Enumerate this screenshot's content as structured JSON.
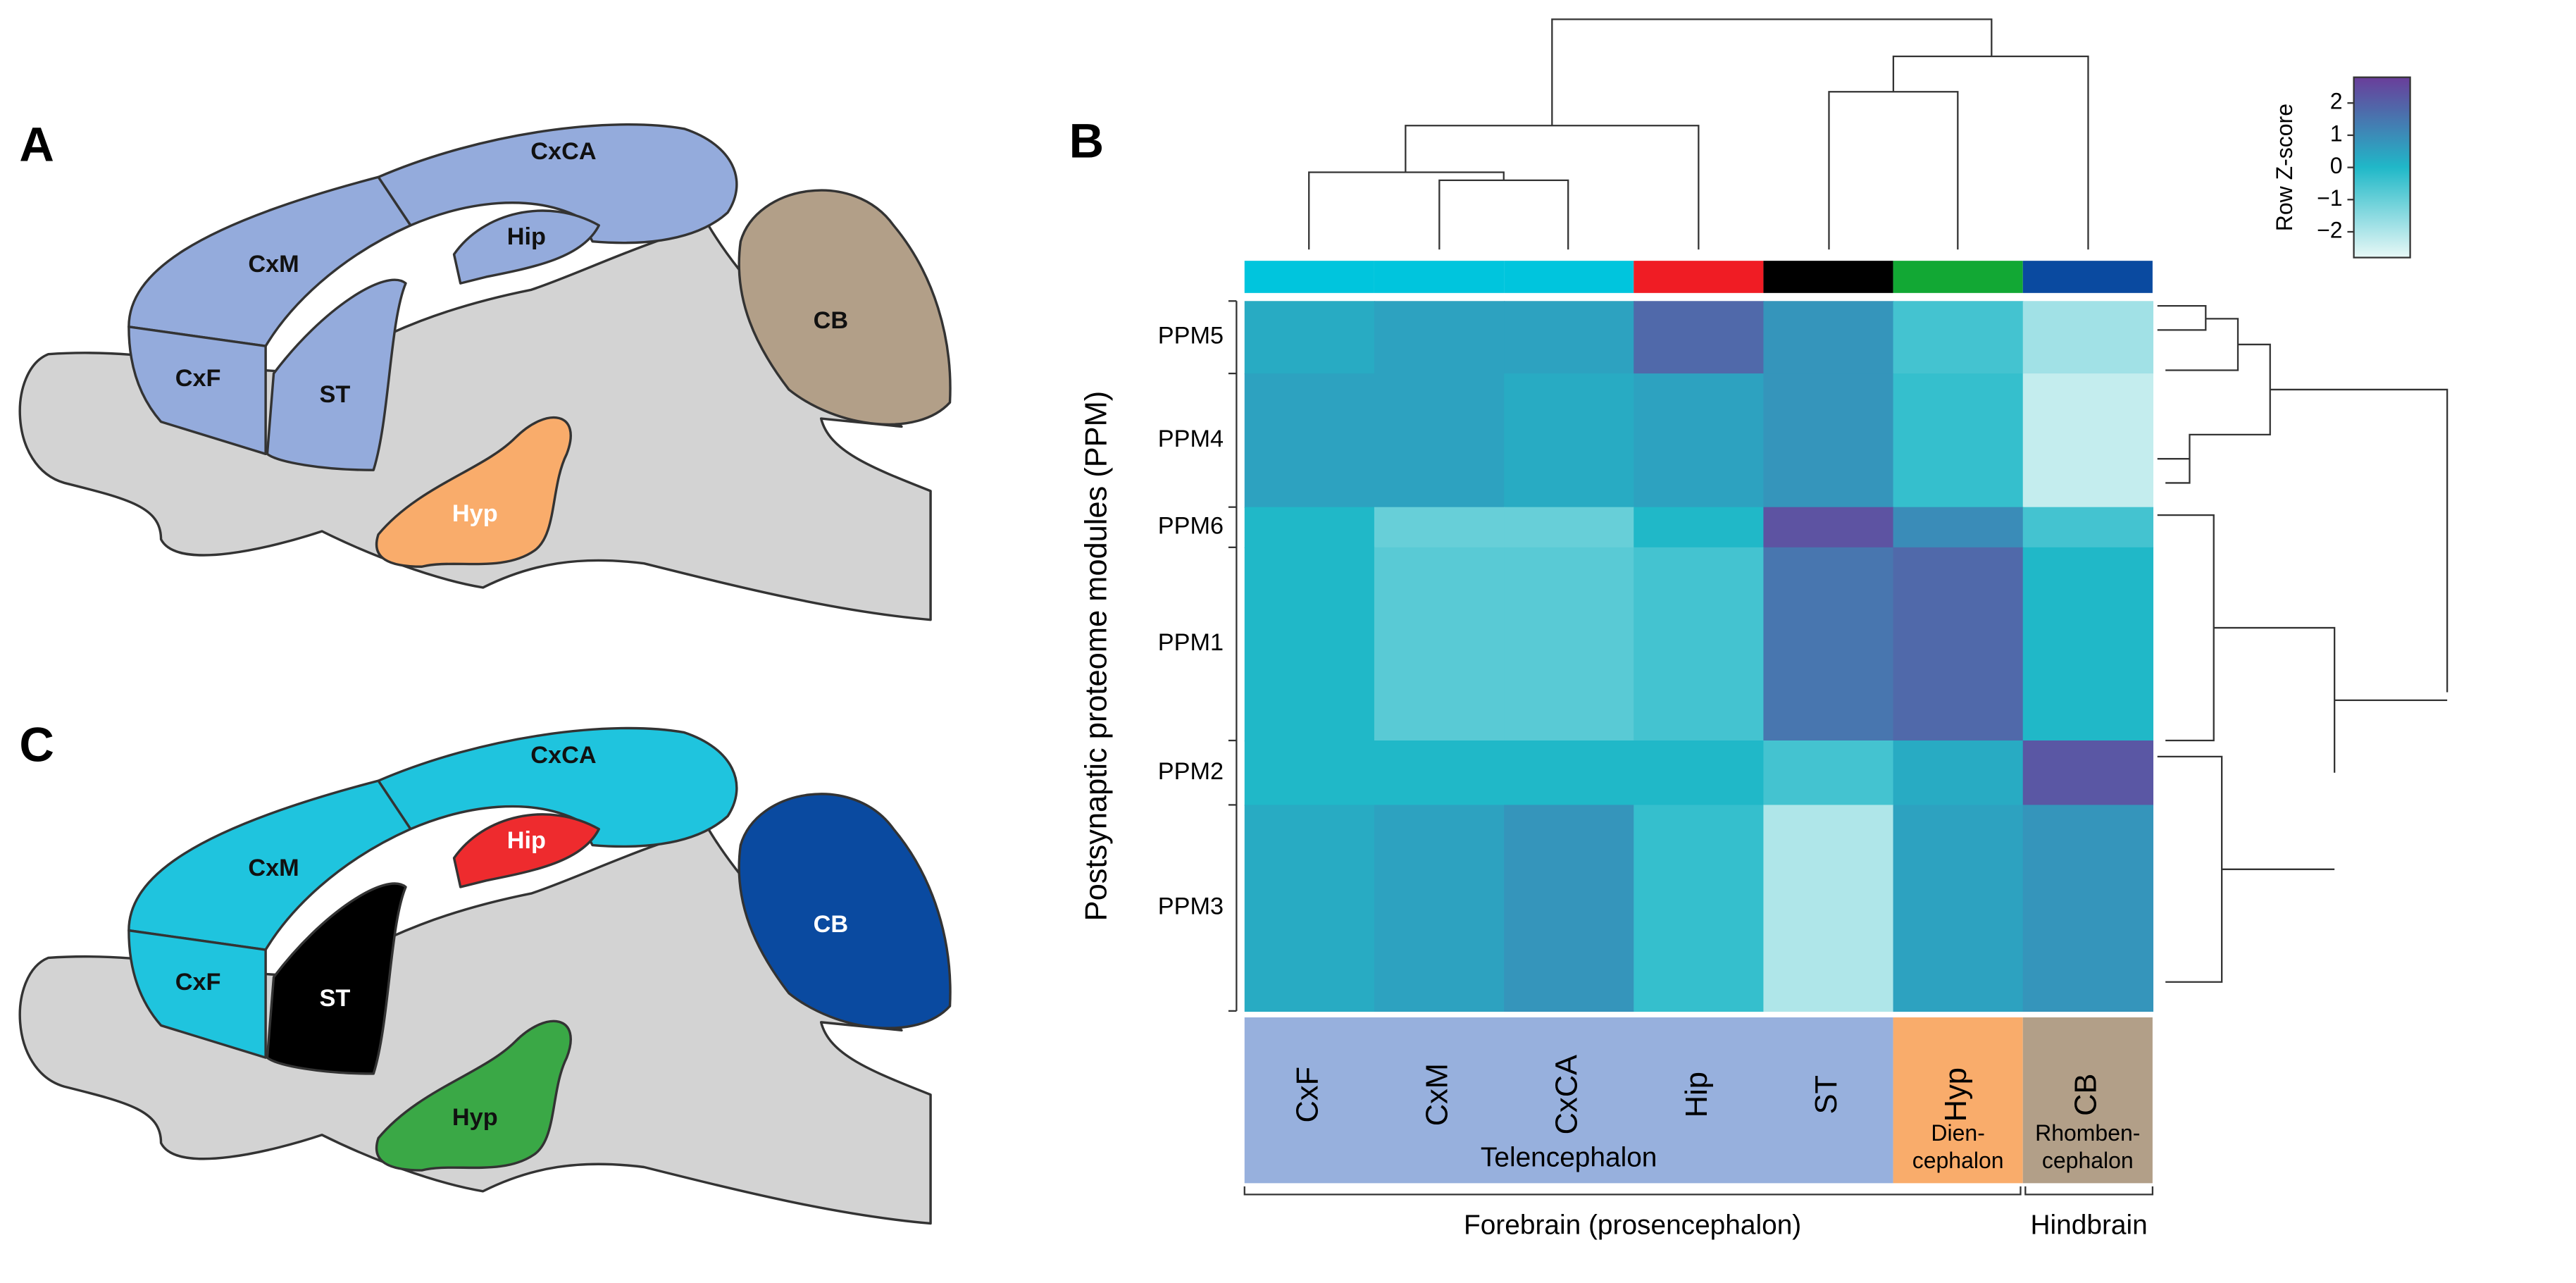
{
  "panels": {
    "a": "A",
    "b": "B",
    "c": "C"
  },
  "brain_a": {
    "regions": [
      {
        "label": "CxCA",
        "color": "#94abdc"
      },
      {
        "label": "CxM",
        "color": "#94abdc"
      },
      {
        "label": "Hip",
        "color": "#94abdc"
      },
      {
        "label": "CxF",
        "color": "#94abdc"
      },
      {
        "label": "ST",
        "color": "#94abdc"
      },
      {
        "label": "CB",
        "color": "#b29f88"
      },
      {
        "label": "Hyp",
        "color": "#f9ac6b"
      }
    ]
  },
  "brain_c": {
    "regions": [
      {
        "label": "CxCA",
        "color": "#1fc4de"
      },
      {
        "label": "CxM",
        "color": "#1fc4de"
      },
      {
        "label": "Hip",
        "color": "#ee2b2e"
      },
      {
        "label": "CxF",
        "color": "#1fc4de"
      },
      {
        "label": "ST",
        "color": "#000000"
      },
      {
        "label": "CB",
        "color": "#0a4aa0"
      },
      {
        "label": "Hyp",
        "color": "#3aa846"
      }
    ]
  },
  "heatmap": {
    "y_label": "Postsynaptic proteome modules (PPM)",
    "columns": [
      "CxF",
      "CxM",
      "CxCA",
      "Hip",
      "ST",
      "Hyp",
      "CB"
    ],
    "column_colors": [
      "#00c5dd",
      "#00c5dd",
      "#00c5dd",
      "#f01c24",
      "#000000",
      "#12a834",
      "#0a4aa0"
    ],
    "rows": [
      "PPM5",
      "PPM4",
      "PPM6",
      "PPM1",
      "PPM2",
      "PPM3"
    ],
    "values": [
      [
        0.3,
        0.5,
        0.5,
        1.8,
        0.8,
        -0.5,
        -1.8
      ],
      [
        0.5,
        0.5,
        0.3,
        0.5,
        0.8,
        -0.3,
        -2.3
      ],
      [
        0,
        -1,
        -1,
        0,
        2.3,
        1,
        -0.5
      ],
      [
        0,
        -0.8,
        -0.8,
        -0.5,
        1.5,
        1.8,
        0
      ],
      [
        0,
        0,
        0,
        0,
        -0.5,
        0.3,
        2.2
      ],
      [
        0.3,
        0.5,
        0.8,
        -0.3,
        -2,
        0.5,
        0.8
      ]
    ],
    "regions": [
      {
        "lines": [
          "Telencephalon"
        ],
        "color": "#97b0dd"
      },
      {
        "lines": [
          "Dien-",
          "cephalon"
        ],
        "color": "#f9ac6b"
      },
      {
        "lines": [
          "Rhomben-",
          "cephalon"
        ],
        "color": "#b29f88"
      }
    ],
    "divisions": [
      "Forebrain (prosencephalon)",
      "Hindbrain"
    ],
    "colorbar": {
      "title": "Row Z-score",
      "lim": [
        -2.8,
        2.8
      ],
      "ticks": [
        2,
        1,
        0,
        {
          "value": -1,
          "label": "−1"
        },
        {
          "value": -2,
          "label": "−2"
        }
      ]
    }
  }
}
